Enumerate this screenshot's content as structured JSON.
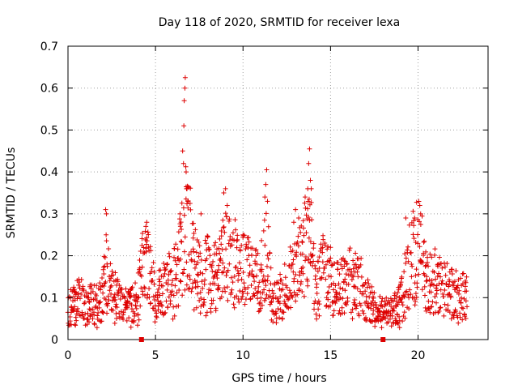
{
  "chart_data": {
    "type": "scatter",
    "title": "Day 118 of 2020, SRMTID for receiver lexa",
    "xlabel": "GPS time / hours",
    "ylabel": "SRMTID / TECUs",
    "xlim": [
      0,
      24
    ],
    "ylim": [
      0,
      0.7
    ],
    "xticks": [
      0,
      5,
      10,
      15,
      20
    ],
    "xtick_labels": [
      "0",
      "5",
      "10",
      "15",
      "20"
    ],
    "yticks": [
      0,
      0.1,
      0.2,
      0.3,
      0.4,
      0.5,
      0.6,
      0.7
    ],
    "ytick_labels": [
      "0",
      "0.1",
      "0.2",
      "0.3",
      "0.4",
      "0.5",
      "0.6",
      "0.7"
    ],
    "grid": true,
    "marker": "+",
    "color": "#dd0000",
    "axis_markers_x": [
      4.2,
      18.0
    ],
    "series_envelope": [
      [
        0.0,
        0.07
      ],
      [
        0.5,
        0.09
      ],
      [
        1.0,
        0.09
      ],
      [
        1.5,
        0.08
      ],
      [
        2.0,
        0.1
      ],
      [
        2.2,
        0.17
      ],
      [
        2.5,
        0.11
      ],
      [
        3.0,
        0.09
      ],
      [
        3.5,
        0.08
      ],
      [
        4.0,
        0.1
      ],
      [
        4.3,
        0.18
      ],
      [
        4.6,
        0.16
      ],
      [
        5.0,
        0.1
      ],
      [
        5.5,
        0.12
      ],
      [
        6.0,
        0.13
      ],
      [
        6.5,
        0.22
      ],
      [
        6.8,
        0.28
      ],
      [
        7.2,
        0.18
      ],
      [
        7.6,
        0.14
      ],
      [
        8.0,
        0.16
      ],
      [
        8.5,
        0.15
      ],
      [
        9.0,
        0.24
      ],
      [
        9.4,
        0.18
      ],
      [
        10.0,
        0.18
      ],
      [
        10.5,
        0.16
      ],
      [
        11.0,
        0.13
      ],
      [
        11.3,
        0.22
      ],
      [
        11.7,
        0.09
      ],
      [
        12.0,
        0.09
      ],
      [
        12.5,
        0.12
      ],
      [
        13.0,
        0.17
      ],
      [
        13.5,
        0.21
      ],
      [
        13.8,
        0.24
      ],
      [
        14.2,
        0.12
      ],
      [
        14.6,
        0.17
      ],
      [
        15.0,
        0.13
      ],
      [
        15.5,
        0.12
      ],
      [
        16.0,
        0.14
      ],
      [
        16.5,
        0.14
      ],
      [
        17.0,
        0.1
      ],
      [
        17.5,
        0.07
      ],
      [
        18.0,
        0.06
      ],
      [
        18.5,
        0.07
      ],
      [
        19.0,
        0.09
      ],
      [
        19.5,
        0.18
      ],
      [
        20.0,
        0.22
      ],
      [
        20.5,
        0.14
      ],
      [
        21.0,
        0.14
      ],
      [
        21.5,
        0.12
      ],
      [
        22.0,
        0.11
      ],
      [
        22.4,
        0.1
      ],
      [
        22.8,
        0.11
      ]
    ],
    "peaks": [
      [
        2.15,
        0.31
      ],
      [
        2.2,
        0.3
      ],
      [
        2.18,
        0.25
      ],
      [
        4.45,
        0.27
      ],
      [
        4.5,
        0.28
      ],
      [
        6.55,
        0.45
      ],
      [
        6.6,
        0.42
      ],
      [
        6.62,
        0.51
      ],
      [
        6.64,
        0.57
      ],
      [
        6.68,
        0.6
      ],
      [
        6.7,
        0.625
      ],
      [
        6.75,
        0.4
      ],
      [
        6.8,
        0.36
      ],
      [
        6.85,
        0.33
      ],
      [
        7.6,
        0.3
      ],
      [
        8.9,
        0.35
      ],
      [
        9.0,
        0.36
      ],
      [
        9.1,
        0.32
      ],
      [
        11.25,
        0.34
      ],
      [
        11.3,
        0.37
      ],
      [
        11.35,
        0.405
      ],
      [
        11.4,
        0.33
      ],
      [
        13.55,
        0.34
      ],
      [
        13.7,
        0.36
      ],
      [
        13.75,
        0.42
      ],
      [
        13.8,
        0.455
      ],
      [
        13.85,
        0.38
      ],
      [
        13.9,
        0.36
      ],
      [
        20.1,
        0.32
      ],
      [
        20.15,
        0.3
      ],
      [
        19.3,
        0.29
      ],
      [
        19.8,
        0.29
      ],
      [
        13.0,
        0.31
      ],
      [
        12.9,
        0.28
      ],
      [
        6.4,
        0.3
      ],
      [
        10.0,
        0.25
      ],
      [
        15.0,
        0.22
      ]
    ]
  }
}
